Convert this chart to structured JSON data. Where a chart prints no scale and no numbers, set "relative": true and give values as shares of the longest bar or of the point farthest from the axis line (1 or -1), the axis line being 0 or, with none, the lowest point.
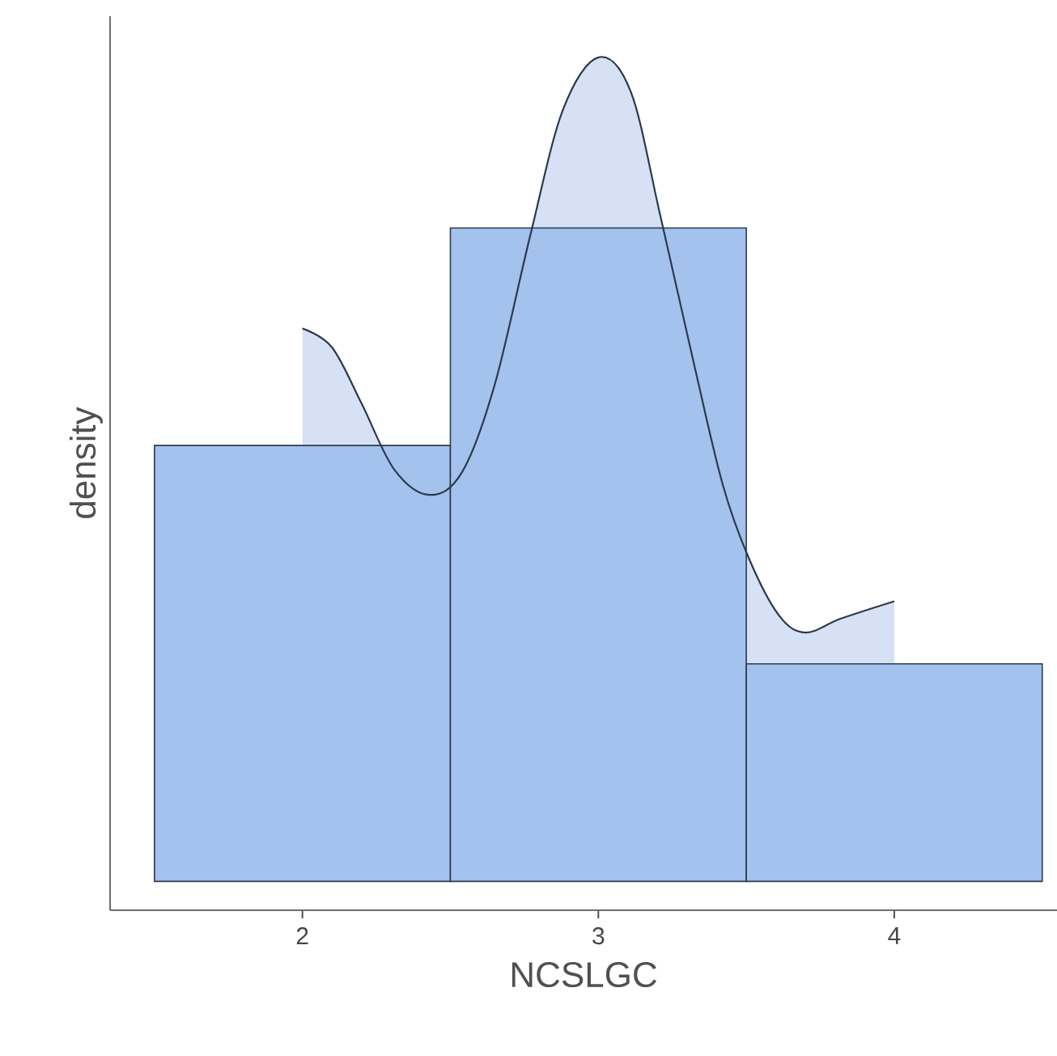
{
  "chart_data": {
    "type": "histogram",
    "xlabel": "NCSLGC",
    "ylabel": "density",
    "relative": true,
    "xlim": [
      1.35,
      4.55
    ],
    "xticks": [
      2,
      3,
      4
    ],
    "series": [
      {
        "type": "area",
        "color": "#d6e1f5",
        "x": [
          2.0,
          2.1,
          2.2,
          2.31,
          2.43,
          2.54,
          2.65,
          2.77,
          2.88,
          3.0,
          3.11,
          3.21,
          3.32,
          3.42,
          3.51,
          3.61,
          3.7,
          3.82,
          4.0
        ],
        "values": [
          0.671,
          0.648,
          0.58,
          0.5,
          0.469,
          0.497,
          0.603,
          0.784,
          0.936,
          1.0,
          0.958,
          0.807,
          0.633,
          0.482,
          0.391,
          0.323,
          0.302,
          0.319,
          0.34
        ]
      },
      {
        "type": "histogram",
        "color": "#a4c2ee",
        "bins": [
          1.5,
          2.5,
          3.5,
          4.5
        ],
        "values": [
          0.529,
          0.793,
          0.264
        ]
      }
    ]
  }
}
